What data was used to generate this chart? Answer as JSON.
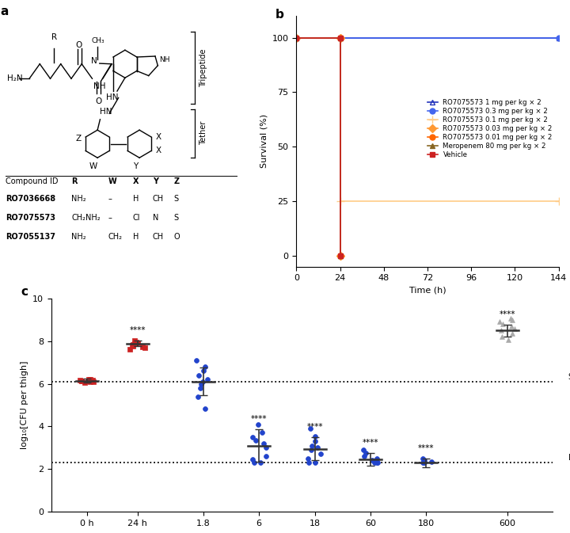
{
  "panel_b": {
    "xlabel": "Time (h)",
    "ylabel": "Survival (%)",
    "xlim": [
      0,
      144
    ],
    "ylim": [
      -5,
      110
    ],
    "xticks": [
      0,
      24,
      48,
      72,
      96,
      120,
      144
    ],
    "yticks": [
      0,
      25,
      50,
      75,
      100
    ],
    "series": [
      {
        "label": "RO7075573 1 mg per kg × 2",
        "color": "#2233bb",
        "marker": "^",
        "fillstyle": "none",
        "times": [
          0,
          144
        ],
        "survival": [
          100,
          100
        ]
      },
      {
        "label": "RO7075573 0.3 mg per kg × 2",
        "color": "#4466ee",
        "marker": "o",
        "fillstyle": "full",
        "times": [
          0,
          144
        ],
        "survival": [
          100,
          100
        ]
      },
      {
        "label": "RO7075573 0.1 mg per kg × 2",
        "color": "#ffcc88",
        "marker": "+",
        "fillstyle": "full",
        "times": [
          0,
          24,
          24,
          144
        ],
        "survival": [
          100,
          100,
          25,
          25
        ]
      },
      {
        "label": "RO7075573 0.03 mg per kg × 2",
        "color": "#ff9933",
        "marker": "D",
        "fillstyle": "full",
        "times": [
          0,
          24,
          24
        ],
        "survival": [
          100,
          100,
          0
        ]
      },
      {
        "label": "RO7075573 0.01 mg per kg × 2",
        "color": "#ff6600",
        "marker": "o",
        "fillstyle": "full",
        "times": [
          0,
          24,
          24
        ],
        "survival": [
          100,
          100,
          0
        ]
      },
      {
        "label": "Meropenem 80 mg per kg × 2",
        "color": "#886622",
        "marker": "^",
        "fillstyle": "full",
        "times": [
          0,
          24,
          24
        ],
        "survival": [
          100,
          100,
          0
        ]
      },
      {
        "label": "Vehicle",
        "color": "#cc2222",
        "marker": "s",
        "fillstyle": "full",
        "times": [
          0,
          24,
          24
        ],
        "survival": [
          100,
          100,
          0
        ]
      }
    ]
  },
  "panel_c": {
    "ylabel": "log₁₀[CFU per thigh]",
    "ylim": [
      0,
      10
    ],
    "yticks": [
      0,
      2,
      4,
      6,
      8,
      10
    ],
    "start_of_treatment_y": 6.1,
    "limit_of_detection_y": 2.3,
    "groups": [
      {
        "label": "0 h",
        "color": "#cc2222",
        "marker": "s",
        "mean": 6.15,
        "sd": 0.08,
        "points": [
          6.05,
          6.08,
          6.1,
          6.12,
          6.13,
          6.15,
          6.17,
          6.18,
          6.2,
          6.22
        ],
        "sig": ""
      },
      {
        "label": "24 h",
        "color": "#cc2222",
        "marker": "s",
        "mean": 7.88,
        "sd": 0.13,
        "points": [
          7.62,
          7.68,
          7.72,
          7.78,
          7.82,
          7.85,
          7.88,
          7.92,
          7.96,
          8.02
        ],
        "sig": "****"
      },
      {
        "label": "1.8",
        "color": "#2244cc",
        "marker": "o",
        "mean": 6.1,
        "sd": 0.65,
        "points": [
          4.85,
          5.4,
          5.8,
          6.0,
          6.1,
          6.2,
          6.4,
          6.6,
          6.8,
          7.1
        ],
        "sig": ""
      },
      {
        "label": "6",
        "color": "#2244cc",
        "marker": "o",
        "mean": 3.1,
        "sd": 0.75,
        "points": [
          2.3,
          2.32,
          2.45,
          2.62,
          3.0,
          3.2,
          3.35,
          3.5,
          3.7,
          4.1
        ],
        "sig": "****"
      },
      {
        "label": "18",
        "color": "#2244cc",
        "marker": "o",
        "mean": 2.95,
        "sd": 0.55,
        "points": [
          2.3,
          2.32,
          2.5,
          2.7,
          2.9,
          3.0,
          3.1,
          3.3,
          3.55,
          3.9
        ],
        "sig": "****"
      },
      {
        "label": "60",
        "color": "#2244cc",
        "marker": "o",
        "mean": 2.45,
        "sd": 0.3,
        "points": [
          2.3,
          2.3,
          2.3,
          2.35,
          2.4,
          2.5,
          2.6,
          2.75,
          2.9
        ],
        "sig": "****"
      },
      {
        "label": "180",
        "color": "#2244cc",
        "marker": "o",
        "mean": 2.3,
        "sd": 0.2,
        "points": [
          2.3,
          2.3,
          2.3,
          2.35,
          2.4,
          2.5
        ],
        "sig": "****"
      },
      {
        "label": "600",
        "color": "#aaaaaa",
        "marker": "^",
        "mean": 8.5,
        "sd": 0.28,
        "points": [
          8.05,
          8.2,
          8.35,
          8.5,
          8.6,
          8.7,
          8.8,
          8.9,
          9.0,
          9.05
        ],
        "sig": "****"
      }
    ]
  }
}
